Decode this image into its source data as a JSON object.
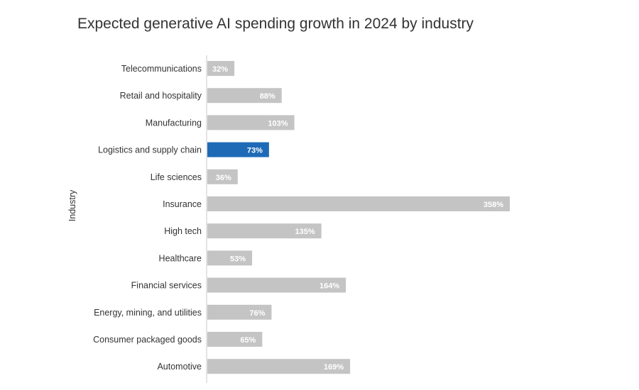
{
  "chart_data": {
    "type": "bar",
    "orientation": "horizontal",
    "title": "Expected generative AI spending growth in 2024 by industry",
    "ylabel": "Industry",
    "xlabel": "",
    "value_suffix": "%",
    "xlim": [
      0,
      400
    ],
    "categories": [
      "Telecommunications",
      "Retail and hospitality",
      "Manufacturing",
      "Logistics and supply chain",
      "Life sciences",
      "Insurance",
      "High tech",
      "Healthcare",
      "Financial services",
      "Energy, mining, and utilities",
      "Consumer packaged goods",
      "Automotive"
    ],
    "values": [
      32,
      88,
      103,
      73,
      36,
      358,
      135,
      53,
      164,
      76,
      65,
      169
    ],
    "highlight": "Logistics and supply chain",
    "colors": {
      "bar": "#c4c4c4",
      "highlight": "#1e6ab7",
      "axis": "#c8c8c8"
    }
  }
}
